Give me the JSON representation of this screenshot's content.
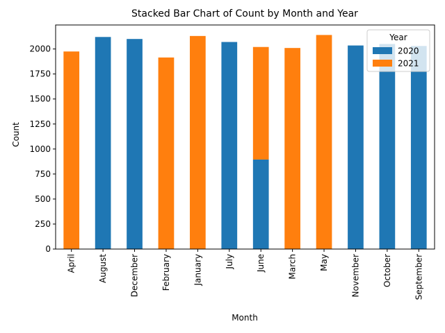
{
  "chart_data": {
    "type": "bar",
    "stacked": true,
    "title": "Stacked Bar Chart of Count by Month and Year",
    "xlabel": "Month",
    "ylabel": "Count",
    "ylim": [
      0,
      2240
    ],
    "yticks": [
      0,
      250,
      500,
      750,
      1000,
      1250,
      1500,
      1750,
      2000
    ],
    "grid": false,
    "legend": {
      "title": "Year",
      "position": "top-right"
    },
    "categories": [
      "April",
      "August",
      "December",
      "February",
      "January",
      "July",
      "June",
      "March",
      "May",
      "November",
      "October",
      "September"
    ],
    "series": [
      {
        "name": "2020",
        "color": "#1f77b4",
        "values": [
          0,
          2120,
          2100,
          0,
          0,
          2070,
          895,
          0,
          0,
          2035,
          2050,
          2030
        ]
      },
      {
        "name": "2021",
        "color": "#ff7f0e",
        "values": [
          1975,
          0,
          0,
          1915,
          2130,
          0,
          1125,
          2010,
          2140,
          0,
          0,
          0
        ]
      }
    ]
  }
}
